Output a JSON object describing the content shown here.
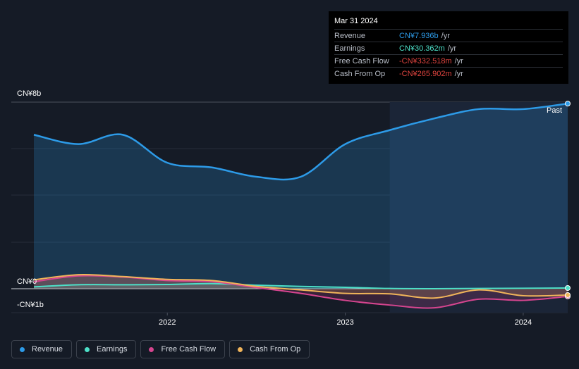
{
  "chart_data": {
    "type": "area",
    "y_labels": [
      "CN¥8b",
      "CN¥0",
      "-CN¥1b"
    ],
    "x_ticks": [
      "2022",
      "2023",
      "2024"
    ],
    "x_tick_values": [
      2022.0,
      2023.0,
      2024.0
    ],
    "xlim": [
      2021.17,
      2024.25
    ],
    "ylim": [
      -1.0,
      8.0
    ],
    "past_label": "Past",
    "past_start": 2023.25,
    "series": [
      {
        "name": "Revenue",
        "color": "#2d9be8",
        "fill": true,
        "x": [
          2021.25,
          2021.5,
          2021.75,
          2022.0,
          2022.25,
          2022.5,
          2022.75,
          2023.0,
          2023.25,
          2023.5,
          2023.75,
          2024.0,
          2024.25
        ],
        "y": [
          6.6,
          6.2,
          6.6,
          5.4,
          5.2,
          4.8,
          4.8,
          6.2,
          6.8,
          7.3,
          7.7,
          7.7,
          7.936
        ]
      },
      {
        "name": "Earnings",
        "color": "#4de0c8",
        "fill": false,
        "x": [
          2021.25,
          2021.5,
          2021.75,
          2022.0,
          2022.25,
          2022.5,
          2022.75,
          2023.0,
          2023.25,
          2023.5,
          2023.75,
          2024.0,
          2024.25
        ],
        "y": [
          0.08,
          0.17,
          0.17,
          0.18,
          0.22,
          0.15,
          0.1,
          0.06,
          0.01,
          0.0,
          0.01,
          0.02,
          0.03
        ]
      },
      {
        "name": "Free Cash Flow",
        "color": "#d6458f",
        "fill": true,
        "x": [
          2021.25,
          2021.5,
          2021.75,
          2022.0,
          2022.25,
          2022.5,
          2022.75,
          2023.0,
          2023.25,
          2023.5,
          2023.75,
          2024.0,
          2024.25
        ],
        "y": [
          0.3,
          0.55,
          0.5,
          0.35,
          0.3,
          0.05,
          -0.2,
          -0.5,
          -0.7,
          -0.82,
          -0.45,
          -0.5,
          -0.33
        ]
      },
      {
        "name": "Cash From Op",
        "color": "#f0b45a",
        "fill": false,
        "x": [
          2021.25,
          2021.5,
          2021.75,
          2022.0,
          2022.25,
          2022.5,
          2022.75,
          2023.0,
          2023.25,
          2023.5,
          2023.75,
          2024.0,
          2024.25
        ],
        "y": [
          0.38,
          0.6,
          0.52,
          0.4,
          0.35,
          0.1,
          -0.05,
          -0.2,
          -0.22,
          -0.4,
          -0.05,
          -0.3,
          -0.27
        ]
      }
    ]
  },
  "tooltip": {
    "date": "Mar 31 2024",
    "rows": [
      {
        "label": "Revenue",
        "value": "CN¥7.936b",
        "unit": "/yr",
        "color": "#2d9be8"
      },
      {
        "label": "Earnings",
        "value": "CN¥30.362m",
        "unit": "/yr",
        "color": "#4de0c8"
      },
      {
        "label": "Free Cash Flow",
        "value": "-CN¥332.518m",
        "unit": "/yr",
        "color": "#e0443f"
      },
      {
        "label": "Cash From Op",
        "value": "-CN¥265.902m",
        "unit": "/yr",
        "color": "#e0443f"
      }
    ]
  },
  "legend": [
    {
      "label": "Revenue",
      "color": "#2d9be8"
    },
    {
      "label": "Earnings",
      "color": "#4de0c8"
    },
    {
      "label": "Free Cash Flow",
      "color": "#d6458f"
    },
    {
      "label": "Cash From Op",
      "color": "#f0b45a"
    }
  ]
}
